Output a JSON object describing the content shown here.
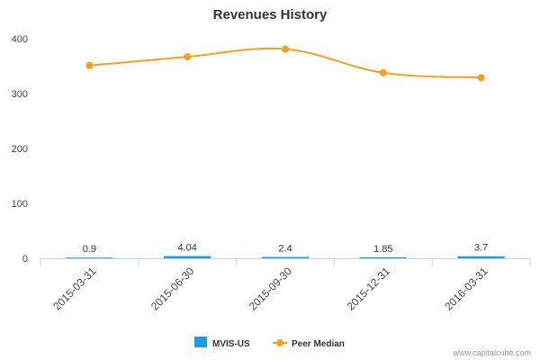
{
  "chart_data": {
    "type": "bar+line",
    "title": "Revenues History",
    "categories": [
      "2015-03-31",
      "2015-06-30",
      "2015-09-30",
      "2015-12-31",
      "2016-03-31"
    ],
    "series": [
      {
        "name": "MVIS-US",
        "type": "bar",
        "values": [
          0.9,
          4.04,
          2.4,
          1.85,
          3.7
        ],
        "data_labels": [
          "0.9",
          "4.04",
          "2.4",
          "1.85",
          "3.7"
        ],
        "color": "#1aa0e0"
      },
      {
        "name": "Peer Median",
        "type": "line",
        "values": [
          351,
          367,
          381,
          338,
          329
        ],
        "color": "#f5a01e"
      }
    ],
    "yticks": [
      "0",
      "100",
      "200",
      "300",
      "400"
    ],
    "ylim": [
      0,
      400
    ],
    "grid": false,
    "legend_position": "bottom-center"
  },
  "credit": "www.capitalcube.com"
}
